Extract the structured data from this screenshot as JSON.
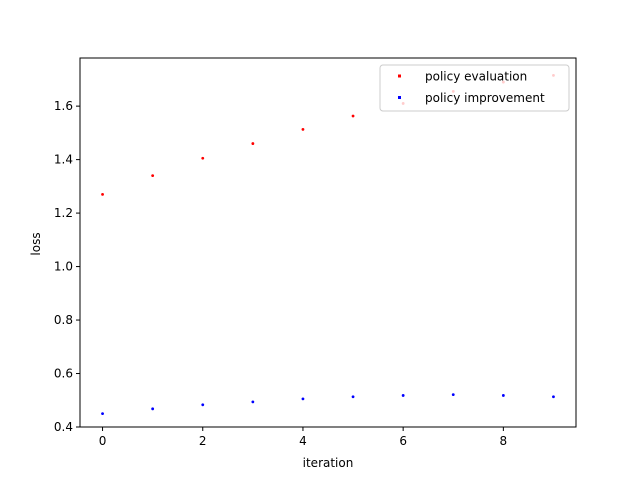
{
  "chart_data": {
    "type": "scatter",
    "title": "",
    "xlabel": "iteration",
    "ylabel": "loss",
    "xlim": [
      -0.45,
      9.45
    ],
    "ylim": [
      0.4,
      1.78
    ],
    "xticks": [
      0,
      2,
      4,
      6,
      8
    ],
    "yticks": [
      0.4,
      0.6,
      0.8,
      1.0,
      1.2,
      1.4,
      1.6
    ],
    "ytick_labels": [
      "0.4",
      "0.6",
      "0.8",
      "1.0",
      "1.2",
      "1.4",
      "1.6"
    ],
    "grid": false,
    "legend_position": "top-right",
    "series": [
      {
        "name": "policy evaluation",
        "color": "#ff0000",
        "x": [
          0,
          1,
          2,
          3,
          4,
          5,
          6,
          7,
          8,
          9
        ],
        "y": [
          1.27,
          1.34,
          1.405,
          1.46,
          1.513,
          1.563,
          1.61,
          1.655,
          1.69,
          1.715
        ]
      },
      {
        "name": "policy improvement",
        "color": "#0000ff",
        "x": [
          0,
          1,
          2,
          3,
          4,
          5,
          6,
          7,
          8,
          9
        ],
        "y": [
          0.45,
          0.468,
          0.483,
          0.494,
          0.505,
          0.513,
          0.518,
          0.521,
          0.518,
          0.513
        ]
      }
    ]
  }
}
